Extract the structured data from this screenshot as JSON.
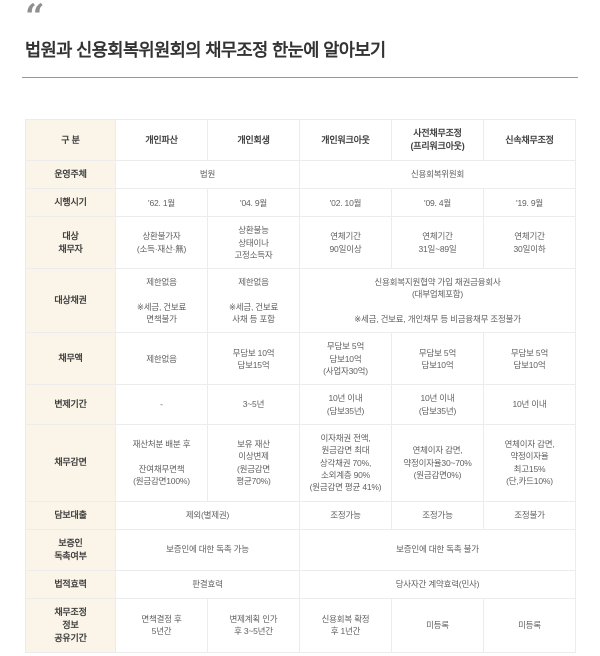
{
  "page": {
    "quote_icon": "“",
    "title": "법원과 신용회복위원회의 채무조정 한눈에 알아보기"
  },
  "colors": {
    "label_column_bg": "#fbf5e9",
    "table_border": "#ececec",
    "label_text": "#3f3f3f",
    "body_text": "#616161",
    "title_text": "#333333",
    "quote_icon": "#8f8f8f",
    "divider": "#979797"
  },
  "table": {
    "header": [
      "구 분",
      "개인파산",
      "개인회생",
      "개인워크아웃",
      "사전채무조정\n(프리워크아웃)",
      "신속채무조정"
    ],
    "rows": [
      {
        "label": "운영주체",
        "cells": [
          {
            "text": "법원",
            "span": 2
          },
          {
            "text": "신용회복위원회",
            "span": 3
          }
        ]
      },
      {
        "label": "시행시기",
        "cells": [
          {
            "text": "'62. 1월"
          },
          {
            "text": "'04. 9월"
          },
          {
            "text": "'02. 10월"
          },
          {
            "text": "'09. 4월"
          },
          {
            "text": "'19. 9월"
          }
        ]
      },
      {
        "label": "대상\n채무자",
        "cells": [
          {
            "text": "상환불가자\n(소득·재산·無)"
          },
          {
            "text": "상환불능\n상태이나\n고정소득자"
          },
          {
            "text": "연체기간\n90일이상"
          },
          {
            "text": "연체기간\n31일~89일"
          },
          {
            "text": "연체기간\n30일이하"
          }
        ]
      },
      {
        "label": "대상채권",
        "cells": [
          {
            "text": "제한없음\n\n※세금, 건보료\n면책불가"
          },
          {
            "text": "제한없음\n\n※세금, 건보료\n사채 등 포함"
          },
          {
            "text": "신용회복지원협약 가입 채권금융회사\n(대부업체포함)\n\n※세금, 건보료, 개인채무 등 비금융채무 조정불가",
            "span": 3
          }
        ]
      },
      {
        "label": "채무액",
        "cells": [
          {
            "text": "제한없음"
          },
          {
            "text": "무담보 10억\n담보15억"
          },
          {
            "text": "무담보 5억\n담보10억\n(사업자30억)"
          },
          {
            "text": "무담보 5억\n담보10억"
          },
          {
            "text": "무담보 5억\n담보10억"
          }
        ]
      },
      {
        "label": "변제기간",
        "cells": [
          {
            "text": "-"
          },
          {
            "text": "3~5년"
          },
          {
            "text": "10년 이내\n(담보35년)"
          },
          {
            "text": "10년 이내\n(담보35년)"
          },
          {
            "text": "10년 이내"
          }
        ]
      },
      {
        "label": "채무감면",
        "cells": [
          {
            "text": "재산처분 배분 후\n\n잔여채무면책\n(원금감면100%)"
          },
          {
            "text": "보유 재산\n이상변제\n(원금감면\n평균70%)"
          },
          {
            "text": "이자채권 전액,\n원금감면 최대\n상각채권 70%,\n소외계층 90%\n(원금감면 평균 41%)"
          },
          {
            "text": "연체이자 감면,\n약정이자율30~70%\n(원금감면0%)"
          },
          {
            "text": "연체이자 감면,\n약정이자율\n최고15%\n(단,카드10%)"
          }
        ]
      },
      {
        "label": "담보대출",
        "cells": [
          {
            "text": "제외(별제권)",
            "span": 2
          },
          {
            "text": "조정가능"
          },
          {
            "text": "조정가능"
          },
          {
            "text": "조정불가"
          }
        ]
      },
      {
        "label": "보증인\n독촉여부",
        "cells": [
          {
            "text": "보증인에 대한 독촉 가능",
            "span": 2
          },
          {
            "text": "보증인에 대한 독촉 불가",
            "span": 3
          }
        ]
      },
      {
        "label": "법적효력",
        "cells": [
          {
            "text": "판결효력",
            "span": 2
          },
          {
            "text": "당사자간 계약효력(민사)",
            "span": 3
          }
        ]
      },
      {
        "label": "채무조정\n정보\n공유기간",
        "cells": [
          {
            "text": "면책결정 후\n5년간"
          },
          {
            "text": "변제계획 인가\n후 3~5년간"
          },
          {
            "text": "신용회복 확정\n후 1년간"
          },
          {
            "text": "미등록"
          },
          {
            "text": "미등록"
          }
        ]
      }
    ]
  }
}
